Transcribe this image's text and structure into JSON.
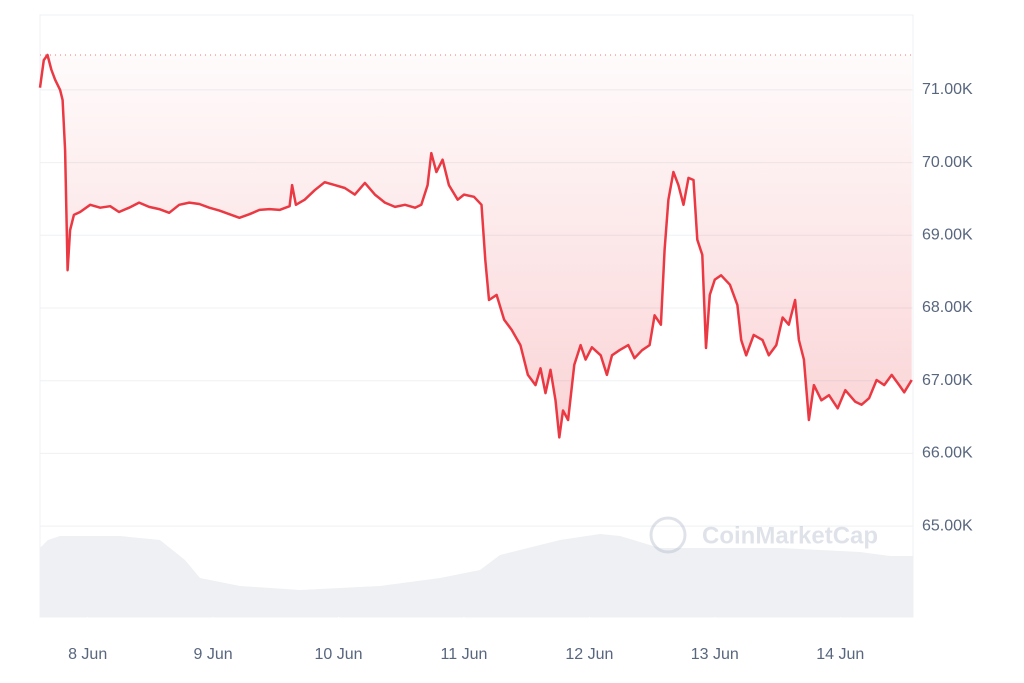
{
  "chart_data": {
    "type": "line",
    "x": [
      7.62,
      7.65,
      7.68,
      7.71,
      7.74,
      7.78,
      7.8,
      7.82,
      7.84,
      7.86,
      7.89,
      7.94,
      8.02,
      8.1,
      8.18,
      8.25,
      8.33,
      8.41,
      8.49,
      8.57,
      8.65,
      8.73,
      8.81,
      8.89,
      8.97,
      9.05,
      9.13,
      9.21,
      9.29,
      9.37,
      9.45,
      9.53,
      9.61,
      9.63,
      9.66,
      9.73,
      9.81,
      9.89,
      9.97,
      10.05,
      10.13,
      10.21,
      10.29,
      10.37,
      10.45,
      10.53,
      10.61,
      10.66,
      10.71,
      10.74,
      10.78,
      10.83,
      10.88,
      10.95,
      11.0,
      11.08,
      11.14,
      11.17,
      11.2,
      11.26,
      11.32,
      11.38,
      11.45,
      11.51,
      11.57,
      11.61,
      11.65,
      11.69,
      11.73,
      11.76,
      11.79,
      11.83,
      11.88,
      11.93,
      11.97,
      12.02,
      12.09,
      12.14,
      12.18,
      12.24,
      12.31,
      12.36,
      12.42,
      12.48,
      12.52,
      12.57,
      12.6,
      12.63,
      12.67,
      12.71,
      12.75,
      12.79,
      12.83,
      12.86,
      12.9,
      12.93,
      12.96,
      13.0,
      13.05,
      13.12,
      13.18,
      13.21,
      13.25,
      13.31,
      13.38,
      13.43,
      13.49,
      13.54,
      13.59,
      13.64,
      13.67,
      13.71,
      13.75,
      13.79,
      13.85,
      13.91,
      13.98,
      14.04,
      14.12,
      14.17,
      14.23,
      14.29,
      14.35,
      14.41,
      14.47,
      14.51,
      14.57
    ],
    "values": [
      71030,
      71410,
      71480,
      71280,
      71140,
      71000,
      70860,
      70170,
      68520,
      69070,
      69280,
      69320,
      69420,
      69380,
      69400,
      69320,
      69380,
      69450,
      69390,
      69360,
      69310,
      69420,
      69450,
      69430,
      69380,
      69340,
      69290,
      69240,
      69290,
      69350,
      69360,
      69350,
      69400,
      69690,
      69420,
      69490,
      69620,
      69730,
      69690,
      69650,
      69560,
      69720,
      69560,
      69450,
      69390,
      69420,
      69380,
      69420,
      69690,
      70130,
      69870,
      70040,
      69690,
      69490,
      69560,
      69530,
      69420,
      68660,
      68110,
      68180,
      67840,
      67700,
      67490,
      67080,
      66940,
      67170,
      66830,
      67150,
      66730,
      66220,
      66590,
      66460,
      67220,
      67490,
      67290,
      67460,
      67350,
      67080,
      67350,
      67420,
      67490,
      67310,
      67420,
      67490,
      67900,
      67770,
      68800,
      69490,
      69870,
      69690,
      69420,
      69790,
      69760,
      68940,
      68730,
      67450,
      68180,
      68390,
      68450,
      68320,
      68040,
      67560,
      67350,
      67630,
      67560,
      67350,
      67490,
      67870,
      67770,
      68110,
      67560,
      67290,
      66460,
      66940,
      66730,
      66800,
      66620,
      66870,
      66710,
      66670,
      66760,
      67010,
      66940,
      67080,
      66940,
      66840,
      67010
    ],
    "color": "#ea3943",
    "reference_line": 71480,
    "xlim": [
      7.62,
      14.58
    ],
    "xticks": [
      {
        "value": 8,
        "label": "8 Jun"
      },
      {
        "value": 9,
        "label": "9 Jun"
      },
      {
        "value": 10,
        "label": "10 Jun"
      },
      {
        "value": 11,
        "label": "11 Jun"
      },
      {
        "value": 12,
        "label": "12 Jun"
      },
      {
        "value": 13,
        "label": "13 Jun"
      },
      {
        "value": 14,
        "label": "14 Jun"
      }
    ],
    "ylim": [
      63750,
      72030
    ],
    "yticks": [
      {
        "value": 65000,
        "label": "65.00K"
      },
      {
        "value": 66000,
        "label": "66.00K"
      },
      {
        "value": 67000,
        "label": "67.00K"
      },
      {
        "value": 68000,
        "label": "68.00K"
      },
      {
        "value": 69000,
        "label": "69.00K"
      },
      {
        "value": 70000,
        "label": "70.00K"
      },
      {
        "value": 71000,
        "label": "71.00K"
      }
    ],
    "grid": true,
    "watermark": "CoinMarketCap"
  }
}
